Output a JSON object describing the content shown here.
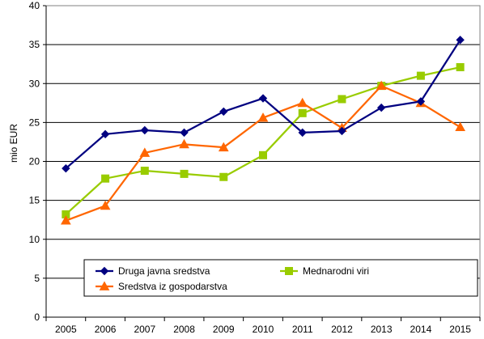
{
  "chart_data": {
    "type": "line",
    "title": "",
    "xlabel": "",
    "ylabel": "mio EUR",
    "ylim": [
      0,
      40
    ],
    "yticks": [
      "0",
      "5",
      "10",
      "15",
      "20",
      "25",
      "30",
      "35",
      "40"
    ],
    "categories": [
      "2005",
      "2006",
      "2007",
      "2008",
      "2009",
      "2010",
      "2011",
      "2012",
      "2013",
      "2014",
      "2015"
    ],
    "grid": "horizontal",
    "legend_position": "bottom-inside",
    "series": [
      {
        "name": "Druga javna sredstva",
        "color": "#000080",
        "marker": "diamond",
        "values": [
          19.1,
          23.5,
          24.0,
          23.7,
          26.4,
          28.1,
          23.7,
          23.9,
          26.9,
          27.7,
          35.6
        ]
      },
      {
        "name": "Mednarodni viri",
        "color": "#99CC00",
        "marker": "square",
        "values": [
          13.2,
          17.8,
          18.8,
          18.4,
          18.0,
          20.8,
          26.2,
          28.0,
          29.7,
          31.0,
          32.1
        ]
      },
      {
        "name": "Sredstva iz gospodarstva",
        "color": "#FF6600",
        "marker": "triangle",
        "values": [
          12.4,
          14.3,
          21.1,
          22.2,
          21.8,
          25.6,
          27.5,
          24.3,
          29.7,
          27.5,
          24.4
        ]
      }
    ]
  }
}
